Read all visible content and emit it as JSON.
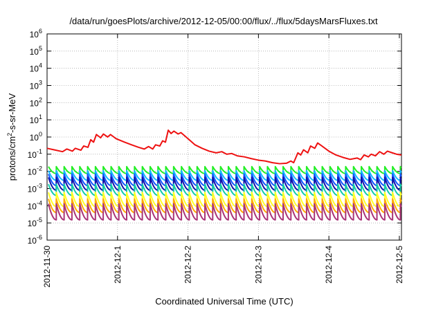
{
  "chart_data": {
    "type": "line",
    "title": "/data/run/goesPlots/archive/2012-12-05/00:00/flux/../flux/5daysMarsFluxes.txt",
    "xlabel": "Coordinated Universal Time (UTC)",
    "ylabel": {
      "base": "protons/cm",
      "sup": "2",
      "rest": "-s-sr-MeV"
    },
    "xlim": [
      0,
      5.03
    ],
    "x_ticks": [
      {
        "pos": 0,
        "label": "2012-11-30"
      },
      {
        "pos": 1,
        "label": "2012-12-1"
      },
      {
        "pos": 2,
        "label": "2012-12-2"
      },
      {
        "pos": 3,
        "label": "2012-12-3"
      },
      {
        "pos": 4,
        "label": "2012-12-4"
      },
      {
        "pos": 5,
        "label": "2012-12-5"
      }
    ],
    "yscale": "log",
    "ylim_exp": [
      -6,
      6
    ],
    "y_ticks": [
      {
        "exp": -6,
        "label": "10",
        "sup": "-6"
      },
      {
        "exp": -5,
        "label": "10",
        "sup": "-5"
      },
      {
        "exp": -4,
        "label": "10",
        "sup": "-4"
      },
      {
        "exp": -3,
        "label": "10",
        "sup": "-3"
      },
      {
        "exp": -2,
        "label": "10",
        "sup": "-2"
      },
      {
        "exp": -1,
        "label": "10",
        "sup": "-1"
      },
      {
        "exp": 0,
        "label": "10",
        "sup": "0"
      },
      {
        "exp": 1,
        "label": "10",
        "sup": "1"
      },
      {
        "exp": 2,
        "label": "10",
        "sup": "2"
      },
      {
        "exp": 3,
        "label": "10",
        "sup": "3"
      },
      {
        "exp": 4,
        "label": "10",
        "sup": "4"
      },
      {
        "exp": 5,
        "label": "10",
        "sup": "5"
      },
      {
        "exp": 6,
        "label": "10",
        "sup": "6"
      }
    ],
    "grid": true,
    "series": [
      {
        "color": "#ee1111",
        "points": [
          [
            0.0,
            0.22
          ],
          [
            0.1,
            0.18
          ],
          [
            0.22,
            0.14
          ],
          [
            0.28,
            0.2
          ],
          [
            0.36,
            0.15
          ],
          [
            0.4,
            0.22
          ],
          [
            0.48,
            0.17
          ],
          [
            0.52,
            0.3
          ],
          [
            0.58,
            0.25
          ],
          [
            0.62,
            0.7
          ],
          [
            0.66,
            0.5
          ],
          [
            0.7,
            1.4
          ],
          [
            0.76,
            0.9
          ],
          [
            0.8,
            1.5
          ],
          [
            0.86,
            1.0
          ],
          [
            0.9,
            1.4
          ],
          [
            0.98,
            0.8
          ],
          [
            1.1,
            0.5
          ],
          [
            1.2,
            0.35
          ],
          [
            1.3,
            0.25
          ],
          [
            1.38,
            0.2
          ],
          [
            1.44,
            0.28
          ],
          [
            1.5,
            0.2
          ],
          [
            1.54,
            0.35
          ],
          [
            1.6,
            0.3
          ],
          [
            1.64,
            0.6
          ],
          [
            1.68,
            0.5
          ],
          [
            1.72,
            2.5
          ],
          [
            1.76,
            1.6
          ],
          [
            1.8,
            2.2
          ],
          [
            1.86,
            1.5
          ],
          [
            1.9,
            1.8
          ],
          [
            2.0,
            0.8
          ],
          [
            2.1,
            0.35
          ],
          [
            2.2,
            0.22
          ],
          [
            2.3,
            0.15
          ],
          [
            2.4,
            0.12
          ],
          [
            2.48,
            0.14
          ],
          [
            2.55,
            0.1
          ],
          [
            2.62,
            0.11
          ],
          [
            2.7,
            0.08
          ],
          [
            2.8,
            0.07
          ],
          [
            2.9,
            0.055
          ],
          [
            3.0,
            0.045
          ],
          [
            3.1,
            0.04
          ],
          [
            3.2,
            0.032
          ],
          [
            3.3,
            0.028
          ],
          [
            3.4,
            0.03
          ],
          [
            3.46,
            0.04
          ],
          [
            3.5,
            0.032
          ],
          [
            3.56,
            0.12
          ],
          [
            3.6,
            0.09
          ],
          [
            3.64,
            0.18
          ],
          [
            3.7,
            0.12
          ],
          [
            3.74,
            0.3
          ],
          [
            3.8,
            0.22
          ],
          [
            3.84,
            0.45
          ],
          [
            3.9,
            0.3
          ],
          [
            4.0,
            0.15
          ],
          [
            4.1,
            0.09
          ],
          [
            4.2,
            0.065
          ],
          [
            4.3,
            0.05
          ],
          [
            4.4,
            0.06
          ],
          [
            4.45,
            0.048
          ],
          [
            4.5,
            0.09
          ],
          [
            4.56,
            0.07
          ],
          [
            4.6,
            0.1
          ],
          [
            4.66,
            0.08
          ],
          [
            4.72,
            0.14
          ],
          [
            4.78,
            0.1
          ],
          [
            4.83,
            0.15
          ],
          [
            4.9,
            0.12
          ],
          [
            4.96,
            0.1
          ],
          [
            5.03,
            0.09
          ]
        ]
      },
      {
        "color": "#22ee22",
        "sawtooth": {
          "period": 0.111,
          "peak": 0.019,
          "trough": 0.0075
        }
      },
      {
        "color": "#11bbff",
        "sawtooth": {
          "period": 0.111,
          "peak": 0.011,
          "trough": 0.003
        }
      },
      {
        "color": "#1155ff",
        "sawtooth": {
          "period": 0.111,
          "peak": 0.007,
          "trough": 0.0015
        }
      },
      {
        "color": "#1111aa",
        "sawtooth": {
          "period": 0.111,
          "peak": 0.0045,
          "trough": 0.0008
        }
      },
      {
        "color": "#11ccaa",
        "sawtooth": {
          "period": 0.111,
          "peak": 0.0018,
          "trough": 0.0004
        }
      },
      {
        "color": "#ffff22",
        "sawtooth": {
          "period": 0.111,
          "peak": 0.0006,
          "trough": 9e-05
        }
      },
      {
        "color": "#ffaa00",
        "sawtooth": {
          "period": 0.111,
          "peak": 0.00025,
          "trough": 4e-05
        }
      },
      {
        "color": "#aa3377",
        "sawtooth": {
          "period": 0.111,
          "peak": 0.00013,
          "trough": 1.5e-05
        }
      }
    ]
  }
}
